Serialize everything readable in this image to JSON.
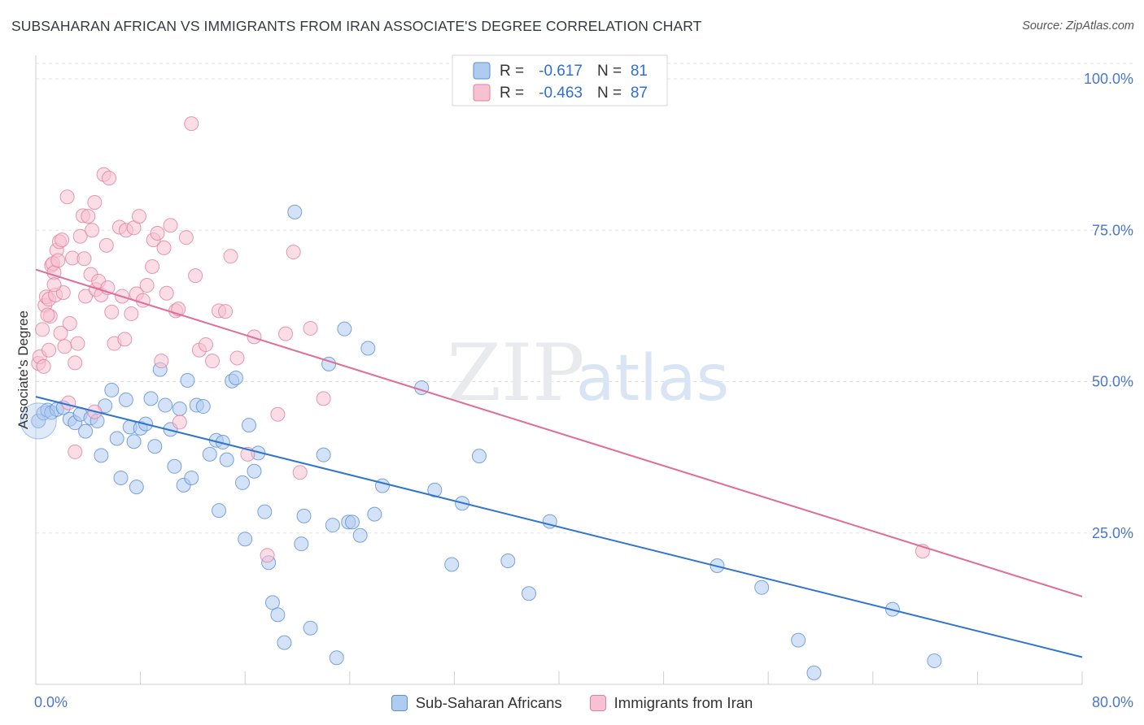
{
  "header": {
    "title": "SUBSAHARAN AFRICAN VS IMMIGRANTS FROM IRAN ASSOCIATE'S DEGREE CORRELATION CHART",
    "source": "Source: ZipAtlas.com"
  },
  "watermark": {
    "zip": "ZIP",
    "atlas": "atlas"
  },
  "stats_legend": {
    "rows": [
      {
        "r_label": "R =",
        "r_value": "-0.617",
        "n_label": "N =",
        "n_value": "81",
        "color": "#aecbf0",
        "stroke": "#5b8fd6"
      },
      {
        "r_label": "R =",
        "r_value": "-0.463",
        "n_label": "N =",
        "n_value": "87",
        "color": "#f8c1d2",
        "stroke": "#e07fa0"
      }
    ]
  },
  "bottom_legend": [
    {
      "label": "Sub-Saharan Africans",
      "color": "#aecbf0",
      "stroke": "#5b8fd6"
    },
    {
      "label": "Immigrants from Iran",
      "color": "#f8c1d2",
      "stroke": "#e07fa0"
    }
  ],
  "chart_data": {
    "type": "scatter",
    "title": "SUBSAHARAN AFRICAN VS IMMIGRANTS FROM IRAN ASSOCIATE'S DEGREE CORRELATION CHART",
    "xlabel": "",
    "ylabel": "Associate's Degree",
    "xlim": [
      0,
      80
    ],
    "ylim": [
      0,
      105
    ],
    "x_tick_labels": [
      "0.0%",
      "80.0%"
    ],
    "y_ticks": [
      25,
      50,
      75,
      100
    ],
    "y_tick_labels": [
      "25.0%",
      "50.0%",
      "75.0%",
      "100.0%"
    ],
    "grid": true,
    "series": [
      {
        "name": "Sub-Saharan Africans",
        "color": "#5b8fd6",
        "fill": "#aecbf0",
        "line_color": "#2f74d0",
        "trend": {
          "x": [
            0,
            80
          ],
          "y": [
            47.5,
            4.5
          ]
        },
        "points": [
          [
            0.2,
            43.5
          ],
          [
            0.6,
            44.8
          ],
          [
            0.9,
            45.3
          ],
          [
            1.2,
            44.9
          ],
          [
            1.6,
            45.4
          ],
          [
            2.1,
            45.7
          ],
          [
            2.6,
            43.8
          ],
          [
            3.0,
            43.2
          ],
          [
            3.4,
            44.6
          ],
          [
            3.8,
            41.8
          ],
          [
            4.2,
            44.0
          ],
          [
            4.7,
            43.5
          ],
          [
            5.0,
            37.8
          ],
          [
            5.3,
            46.0
          ],
          [
            5.8,
            48.6
          ],
          [
            6.2,
            40.6
          ],
          [
            6.5,
            34.1
          ],
          [
            6.9,
            47.0
          ],
          [
            7.2,
            42.5
          ],
          [
            7.5,
            40.1
          ],
          [
            7.7,
            32.6
          ],
          [
            8.0,
            42.3
          ],
          [
            8.4,
            43.0
          ],
          [
            8.8,
            47.2
          ],
          [
            9.1,
            39.3
          ],
          [
            9.5,
            52.0
          ],
          [
            9.9,
            46.1
          ],
          [
            10.3,
            42.1
          ],
          [
            10.6,
            36.0
          ],
          [
            11.0,
            45.5
          ],
          [
            11.3,
            32.9
          ],
          [
            11.6,
            50.2
          ],
          [
            11.9,
            34.1
          ],
          [
            12.3,
            46.1
          ],
          [
            12.8,
            45.9
          ],
          [
            13.3,
            38.0
          ],
          [
            13.8,
            40.3
          ],
          [
            14.0,
            28.7
          ],
          [
            14.3,
            40.0
          ],
          [
            14.6,
            37.1
          ],
          [
            15.0,
            50.1
          ],
          [
            15.3,
            50.6
          ],
          [
            15.8,
            33.3
          ],
          [
            16.0,
            24.0
          ],
          [
            16.3,
            42.8
          ],
          [
            16.7,
            35.2
          ],
          [
            17.0,
            38.2
          ],
          [
            17.5,
            28.5
          ],
          [
            17.8,
            20.1
          ],
          [
            18.1,
            13.5
          ],
          [
            18.5,
            11.5
          ],
          [
            19.0,
            6.9
          ],
          [
            19.8,
            78.0
          ],
          [
            20.3,
            23.2
          ],
          [
            20.5,
            27.8
          ],
          [
            21.0,
            9.3
          ],
          [
            22.0,
            37.9
          ],
          [
            22.4,
            52.9
          ],
          [
            22.7,
            26.3
          ],
          [
            23.0,
            4.4
          ],
          [
            23.6,
            58.7
          ],
          [
            23.9,
            26.8
          ],
          [
            24.2,
            26.8
          ],
          [
            24.8,
            24.6
          ],
          [
            25.4,
            55.5
          ],
          [
            25.9,
            28.1
          ],
          [
            26.5,
            32.8
          ],
          [
            29.5,
            49.0
          ],
          [
            30.5,
            32.1
          ],
          [
            31.8,
            19.8
          ],
          [
            32.6,
            29.9
          ],
          [
            33.9,
            37.7
          ],
          [
            36.1,
            20.4
          ],
          [
            37.7,
            15.0
          ],
          [
            39.3,
            26.9
          ],
          [
            52.1,
            19.6
          ],
          [
            55.5,
            16.0
          ],
          [
            58.3,
            7.3
          ],
          [
            59.5,
            1.9
          ],
          [
            65.5,
            12.4
          ],
          [
            68.7,
            3.9
          ]
        ]
      },
      {
        "name": "Immigrants from Iran",
        "color": "#e07fa0",
        "fill": "#f8c1d2",
        "line_color": "#e06c98",
        "trend": {
          "x": [
            0,
            80
          ],
          "y": [
            68.5,
            14.5
          ]
        },
        "points": [
          [
            0.2,
            53.0
          ],
          [
            0.3,
            54.1
          ],
          [
            0.5,
            58.6
          ],
          [
            0.7,
            62.6
          ],
          [
            0.8,
            64.0
          ],
          [
            1.0,
            63.6
          ],
          [
            1.1,
            60.8
          ],
          [
            1.2,
            69.2
          ],
          [
            1.3,
            69.5
          ],
          [
            1.4,
            68.0
          ],
          [
            1.5,
            64.3
          ],
          [
            1.6,
            71.7
          ],
          [
            1.7,
            70.0
          ],
          [
            1.8,
            73.1
          ],
          [
            2.0,
            73.4
          ],
          [
            2.1,
            64.7
          ],
          [
            2.2,
            55.8
          ],
          [
            2.4,
            80.5
          ],
          [
            2.6,
            59.6
          ],
          [
            2.8,
            70.4
          ],
          [
            3.0,
            53.1
          ],
          [
            3.2,
            56.3
          ],
          [
            3.4,
            74.0
          ],
          [
            3.6,
            77.4
          ],
          [
            3.8,
            64.1
          ],
          [
            4.0,
            77.3
          ],
          [
            4.2,
            67.7
          ],
          [
            4.3,
            75.0
          ],
          [
            4.5,
            79.6
          ],
          [
            4.6,
            65.2
          ],
          [
            4.8,
            66.6
          ],
          [
            5.0,
            64.3
          ],
          [
            5.2,
            84.2
          ],
          [
            5.4,
            72.5
          ],
          [
            5.6,
            83.6
          ],
          [
            5.8,
            61.5
          ],
          [
            6.0,
            56.3
          ],
          [
            6.4,
            75.5
          ],
          [
            6.6,
            64.1
          ],
          [
            6.9,
            75.0
          ],
          [
            7.3,
            61.2
          ],
          [
            7.5,
            75.4
          ],
          [
            7.7,
            64.5
          ],
          [
            7.9,
            77.3
          ],
          [
            8.2,
            63.4
          ],
          [
            8.5,
            65.9
          ],
          [
            9.0,
            73.4
          ],
          [
            9.3,
            74.5
          ],
          [
            9.6,
            53.4
          ],
          [
            10.0,
            64.6
          ],
          [
            10.3,
            75.8
          ],
          [
            10.7,
            61.7
          ],
          [
            11.0,
            43.3
          ],
          [
            11.5,
            73.8
          ],
          [
            11.9,
            92.6
          ],
          [
            12.5,
            55.2
          ],
          [
            13.0,
            56.1
          ],
          [
            13.5,
            53.4
          ],
          [
            14.0,
            61.7
          ],
          [
            14.5,
            61.6
          ],
          [
            14.9,
            70.7
          ],
          [
            15.4,
            53.9
          ],
          [
            16.2,
            38.0
          ],
          [
            16.7,
            57.4
          ],
          [
            17.7,
            21.3
          ],
          [
            18.5,
            44.6
          ],
          [
            19.1,
            57.9
          ],
          [
            19.7,
            71.4
          ],
          [
            20.2,
            35.0
          ],
          [
            21.0,
            58.8
          ],
          [
            22.0,
            47.2
          ],
          [
            3.0,
            38.4
          ],
          [
            4.5,
            45.0
          ],
          [
            2.5,
            46.5
          ],
          [
            1.0,
            55.2
          ],
          [
            0.6,
            52.5
          ],
          [
            1.9,
            58.0
          ],
          [
            5.5,
            65.5
          ],
          [
            6.8,
            57.0
          ],
          [
            8.9,
            69.0
          ],
          [
            9.8,
            72.1
          ],
          [
            10.9,
            62.0
          ],
          [
            12.2,
            67.5
          ],
          [
            3.7,
            70.3
          ],
          [
            1.4,
            66.0
          ],
          [
            0.9,
            61.0
          ],
          [
            67.8,
            22.0
          ]
        ]
      }
    ]
  }
}
